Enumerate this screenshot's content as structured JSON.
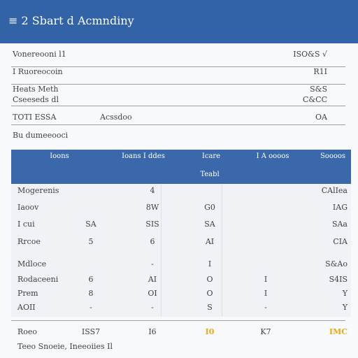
{
  "header": {
    "title": "≡ 2 Sbart d Acmndiny"
  },
  "summary": [
    {
      "left": "Vonereooni l1",
      "right": "ISO&S √"
    },
    {
      "left": "I Ruoreocoin",
      "right": "R1I"
    },
    {
      "left": "Heats Meth",
      "right": "S&S"
    },
    {
      "left": "Cseeseds dl",
      "right": "C&CC"
    },
    {
      "left": "TOTI ESSA",
      "middle": "Acssdoo",
      "right": "OA"
    }
  ],
  "section_title": "Bu dumeeooci",
  "table": {
    "headers": [
      "Ioons",
      "Ioans I ddes",
      "Icare",
      "I A oooos",
      "Soooos"
    ],
    "subheader": "Teabl",
    "rows": [
      [
        "Mogerenis",
        null,
        "4",
        null,
        null,
        "CAlIea"
      ],
      [
        "Iaoov",
        null,
        "8W",
        "G0",
        null,
        "IAG"
      ],
      [
        "I cui",
        "SA",
        "SIS",
        "SA",
        null,
        "SAa"
      ],
      [
        "Rrcoe",
        "5",
        "6",
        "AI",
        null,
        "CIA"
      ],
      [
        "Mdloce",
        null,
        "-",
        "I",
        null,
        "S&Ao"
      ],
      [
        "Rodaceeni",
        "6",
        "AI",
        "O",
        "I",
        "S4IS"
      ],
      [
        "Prem",
        "8",
        "OI",
        "O",
        "I",
        "Y"
      ],
      [
        "AOII",
        "-",
        "-",
        "S",
        "-",
        "Y"
      ]
    ],
    "total": [
      "Roeo",
      "ISS7",
      "I6",
      "I0",
      "K7",
      "IMC"
    ]
  },
  "footer": "Teeo Snoeie, Ineeoiies Il"
}
